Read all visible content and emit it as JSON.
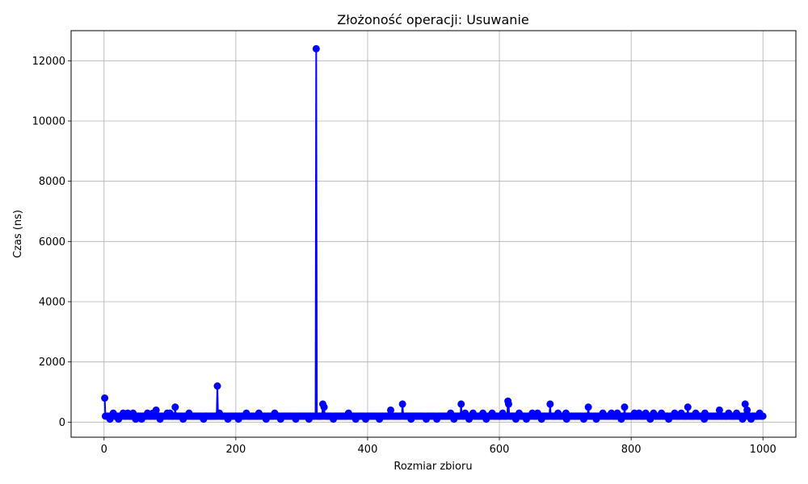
{
  "chart_data": {
    "type": "line",
    "title": "Złożoność operacji: Usuwanie",
    "xlabel": "Rozmiar zbioru",
    "ylabel": "Czas (ns)",
    "xlim": [
      -50,
      1050
    ],
    "ylim": [
      -500,
      13000
    ],
    "xticks": [
      0,
      200,
      400,
      600,
      800,
      1000
    ],
    "yticks": [
      0,
      2000,
      4000,
      6000,
      8000,
      10000,
      12000
    ],
    "grid": true,
    "color": "#0000ff",
    "marker": "circle",
    "x_start": 1,
    "x_end": 1000,
    "baseline": 200,
    "series": [
      {
        "name": "Usuwanie",
        "spikes": [
          [
            1,
            800
          ],
          [
            5,
            200
          ],
          [
            14,
            300
          ],
          [
            29,
            300
          ],
          [
            36,
            300
          ],
          [
            44,
            300
          ],
          [
            66,
            300
          ],
          [
            74,
            300
          ],
          [
            79,
            400
          ],
          [
            96,
            300
          ],
          [
            100,
            300
          ],
          [
            108,
            500
          ],
          [
            129,
            300
          ],
          [
            142,
            200
          ],
          [
            171,
            200
          ],
          [
            172,
            1200
          ],
          [
            175,
            300
          ],
          [
            216,
            300
          ],
          [
            235,
            300
          ],
          [
            259,
            300
          ],
          [
            322,
            12400
          ],
          [
            332,
            600
          ],
          [
            334,
            500
          ],
          [
            371,
            300
          ],
          [
            435,
            400
          ],
          [
            453,
            600
          ],
          [
            526,
            300
          ],
          [
            542,
            600
          ],
          [
            548,
            300
          ],
          [
            560,
            300
          ],
          [
            575,
            300
          ],
          [
            589,
            300
          ],
          [
            605,
            300
          ],
          [
            613,
            700
          ],
          [
            614,
            600
          ],
          [
            630,
            300
          ],
          [
            650,
            300
          ],
          [
            658,
            300
          ],
          [
            677,
            600
          ],
          [
            689,
            300
          ],
          [
            701,
            300
          ],
          [
            735,
            500
          ],
          [
            757,
            300
          ],
          [
            770,
            300
          ],
          [
            779,
            300
          ],
          [
            790,
            500
          ],
          [
            805,
            300
          ],
          [
            812,
            300
          ],
          [
            822,
            300
          ],
          [
            834,
            300
          ],
          [
            846,
            300
          ],
          [
            866,
            300
          ],
          [
            876,
            300
          ],
          [
            886,
            500
          ],
          [
            898,
            300
          ],
          [
            912,
            300
          ],
          [
            934,
            400
          ],
          [
            948,
            300
          ],
          [
            960,
            300
          ],
          [
            973,
            600
          ],
          [
            976,
            400
          ],
          [
            995,
            300
          ]
        ],
        "dips": [
          [
            9,
            100
          ],
          [
            22,
            100
          ],
          [
            48,
            100
          ],
          [
            57,
            100
          ],
          [
            85,
            100
          ],
          [
            120,
            100
          ],
          [
            151,
            100
          ],
          [
            188,
            100
          ],
          [
            204,
            100
          ],
          [
            246,
            100
          ],
          [
            268,
            100
          ],
          [
            291,
            100
          ],
          [
            311,
            100
          ],
          [
            348,
            100
          ],
          [
            382,
            100
          ],
          [
            397,
            100
          ],
          [
            418,
            100
          ],
          [
            466,
            100
          ],
          [
            489,
            100
          ],
          [
            505,
            100
          ],
          [
            531,
            100
          ],
          [
            554,
            100
          ],
          [
            580,
            100
          ],
          [
            625,
            100
          ],
          [
            641,
            100
          ],
          [
            664,
            100
          ],
          [
            702,
            100
          ],
          [
            728,
            100
          ],
          [
            747,
            100
          ],
          [
            785,
            100
          ],
          [
            829,
            100
          ],
          [
            857,
            100
          ],
          [
            911,
            100
          ],
          [
            969,
            100
          ],
          [
            982,
            100
          ]
        ]
      }
    ]
  }
}
